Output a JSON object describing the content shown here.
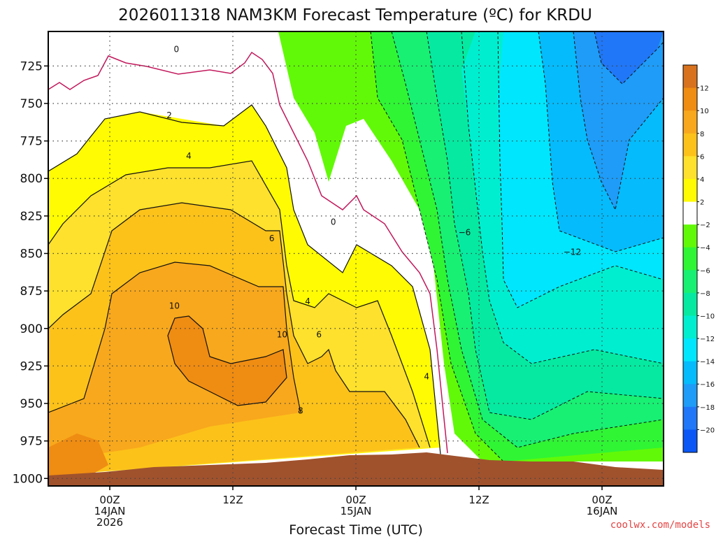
{
  "title": "2026011318 NAM3KM Forecast Temperature (ºC) for KRDU",
  "xlabel": "Forecast Time (UTC)",
  "credit": "coolwx.com/models",
  "chart_data": {
    "type": "heatmap",
    "y_ticks": [
      {
        "value": 725,
        "label": "725"
      },
      {
        "value": 750,
        "label": "750"
      },
      {
        "value": 775,
        "label": "775"
      },
      {
        "value": 800,
        "label": "800"
      },
      {
        "value": 825,
        "label": "825"
      },
      {
        "value": 850,
        "label": "850"
      },
      {
        "value": 875,
        "label": "875"
      },
      {
        "value": 900,
        "label": "900"
      },
      {
        "value": 925,
        "label": "925"
      },
      {
        "value": 950,
        "label": "950"
      },
      {
        "value": 975,
        "label": "975"
      },
      {
        "value": 1000,
        "label": "1000"
      }
    ],
    "ylim": [
      1005,
      702
    ],
    "x_ticks": [
      {
        "hours": 6,
        "lines": [
          "00Z",
          "14JAN",
          "2026"
        ]
      },
      {
        "hours": 18,
        "lines": [
          "12Z"
        ]
      },
      {
        "hours": 30,
        "lines": [
          "00Z",
          "15JAN"
        ]
      },
      {
        "hours": 42,
        "lines": [
          "12Z"
        ]
      },
      {
        "hours": 54,
        "lines": [
          "00Z",
          "16JAN"
        ]
      }
    ],
    "xlim_hours": [
      0,
      60
    ],
    "grid": true,
    "colorbar": {
      "labels": [
        "12",
        "10",
        "8",
        "6",
        "4",
        "2",
        "−2",
        "−4",
        "−6",
        "−8",
        "−10",
        "−12",
        "−14",
        "−16",
        "−18",
        "−20"
      ],
      "colors": [
        "#d8721e",
        "#ef8c12",
        "#f8a81c",
        "#fcc21a",
        "#fde12c",
        "#fffb02",
        "#ffffff",
        "#62f908",
        "#2ff535",
        "#18f073",
        "#05eaa0",
        "#00eed0",
        "#00e6fc",
        "#05bbfb",
        "#1e9cf7",
        "#2077f7",
        "#0b57f6"
      ]
    },
    "contour_labels": [
      {
        "text": "0",
        "hours": 12.5,
        "p": 714
      },
      {
        "text": "0",
        "hours": 27.8,
        "p": 829
      },
      {
        "text": "2",
        "hours": 11.8,
        "p": 758
      },
      {
        "text": "4",
        "hours": 13.7,
        "p": 785
      },
      {
        "text": "6",
        "hours": 21.8,
        "p": 840
      },
      {
        "text": "10",
        "hours": 12.3,
        "p": 885
      },
      {
        "text": "10",
        "hours": 22.8,
        "p": 904
      },
      {
        "text": "6",
        "hours": 26.4,
        "p": 904
      },
      {
        "text": "4",
        "hours": 25.3,
        "p": 882
      },
      {
        "text": "8",
        "hours": 24.6,
        "p": 955
      },
      {
        "text": "4",
        "hours": 36.9,
        "p": 932
      },
      {
        "text": "−6",
        "hours": 40.6,
        "p": 836
      },
      {
        "text": "−12",
        "hours": 51.1,
        "p": 849
      }
    ]
  }
}
